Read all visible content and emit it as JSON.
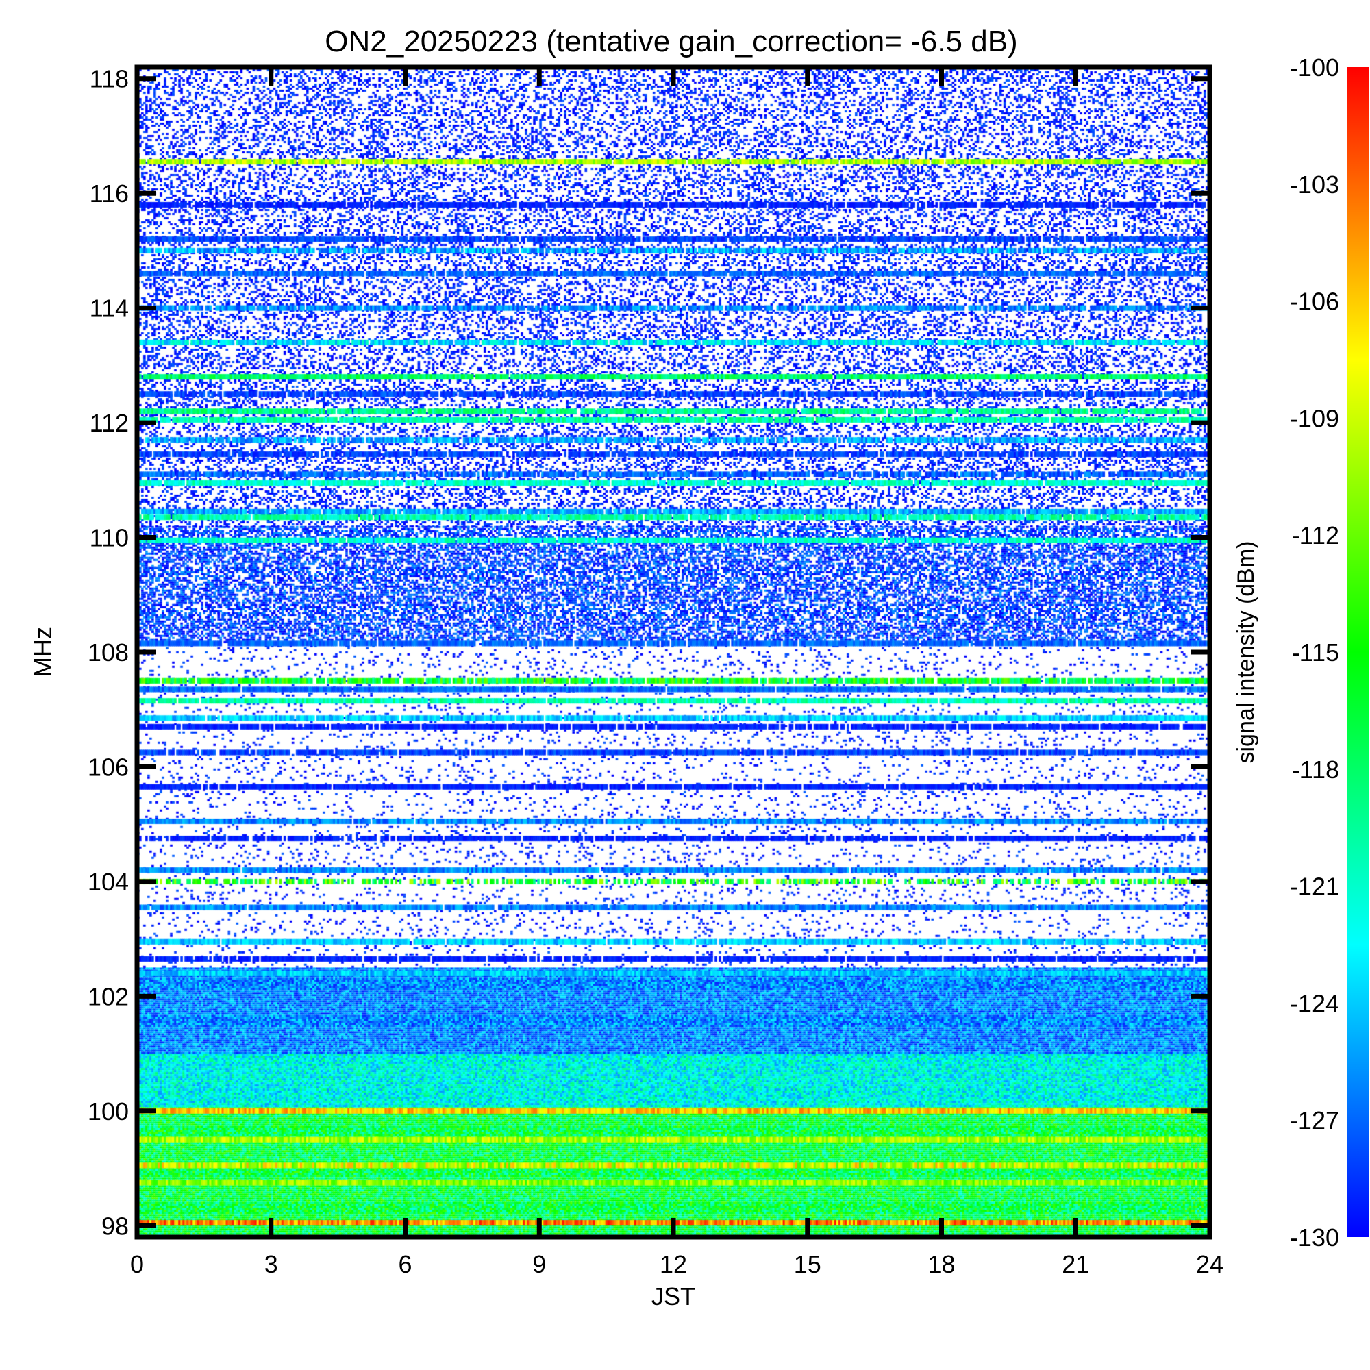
{
  "chart_data": {
    "type": "heatmap",
    "title": "ON2_20250223 (tentative gain_correction= -6.5 dB)",
    "xlabel": "JST",
    "ylabel": "MHz",
    "colorbar_label": "signal intensity (dBm)",
    "xlim": [
      0,
      24
    ],
    "ylim": [
      97.8,
      118.2
    ],
    "clim": [
      -130,
      -100
    ],
    "x_ticks": [
      0,
      3,
      6,
      9,
      12,
      15,
      18,
      21,
      24
    ],
    "y_ticks": [
      98,
      100,
      102,
      104,
      106,
      108,
      110,
      112,
      114,
      116,
      118
    ],
    "colorbar_ticks": [
      -100,
      -103,
      -106,
      -109,
      -112,
      -115,
      -118,
      -121,
      -124,
      -127,
      -130
    ],
    "colormap": [
      "#0000ff",
      "#0080ff",
      "#00ffff",
      "#00ff80",
      "#00ff00",
      "#80ff00",
      "#ffff00",
      "#ff8000",
      "#ff0000"
    ],
    "background_color": "#ffffff",
    "bands": [
      {
        "freq": 116.55,
        "level": -110,
        "noise": 0.35,
        "fill": 0.98
      },
      {
        "freq": 115.8,
        "level": -129,
        "noise": 0.1,
        "fill": 0.9
      },
      {
        "freq": 115.2,
        "level": -128,
        "noise": 0.2,
        "fill": 0.95
      },
      {
        "freq": 115.0,
        "level": -125,
        "noise": 0.4,
        "fill": 0.9
      },
      {
        "freq": 114.6,
        "level": -127,
        "noise": 0.2,
        "fill": 0.95
      },
      {
        "freq": 114.0,
        "level": -126,
        "noise": 0.3,
        "fill": 0.9
      },
      {
        "freq": 113.4,
        "level": -123,
        "noise": 0.4,
        "fill": 0.95
      },
      {
        "freq": 112.8,
        "level": -118,
        "noise": 0.3,
        "fill": 0.98
      },
      {
        "freq": 112.5,
        "level": -128,
        "noise": 0.2,
        "fill": 0.9
      },
      {
        "freq": 112.2,
        "level": -119,
        "noise": 0.3,
        "fill": 0.95
      },
      {
        "freq": 112.05,
        "level": -120,
        "noise": 0.3,
        "fill": 0.95
      },
      {
        "freq": 111.7,
        "level": -125,
        "noise": 0.3,
        "fill": 0.85
      },
      {
        "freq": 111.45,
        "level": -128,
        "noise": 0.2,
        "fill": 0.9
      },
      {
        "freq": 111.1,
        "level": -127,
        "noise": 0.3,
        "fill": 0.9
      },
      {
        "freq": 110.95,
        "level": -121,
        "noise": 0.3,
        "fill": 0.95
      },
      {
        "freq": 110.45,
        "level": -125,
        "noise": 0.3,
        "fill": 0.95
      },
      {
        "freq": 110.35,
        "level": -120,
        "noise": 0.3,
        "fill": 0.95
      },
      {
        "freq": 109.95,
        "level": -121,
        "noise": 0.3,
        "fill": 0.95
      },
      {
        "freq": 108.15,
        "level": -127,
        "noise": 0.2,
        "fill": 0.95
      },
      {
        "freq": 107.5,
        "level": -116,
        "noise": 0.6,
        "fill": 0.9
      },
      {
        "freq": 107.35,
        "level": -127,
        "noise": 0.2,
        "fill": 0.98
      },
      {
        "freq": 107.15,
        "level": -120,
        "noise": 0.3,
        "fill": 0.98
      },
      {
        "freq": 106.85,
        "level": -124,
        "noise": 0.3,
        "fill": 0.95
      },
      {
        "freq": 106.7,
        "level": -129,
        "noise": 0.1,
        "fill": 0.9
      },
      {
        "freq": 106.25,
        "level": -128,
        "noise": 0.2,
        "fill": 0.95
      },
      {
        "freq": 105.65,
        "level": -129,
        "noise": 0.1,
        "fill": 0.95
      },
      {
        "freq": 105.05,
        "level": -126,
        "noise": 0.3,
        "fill": 0.98
      },
      {
        "freq": 104.75,
        "level": -129,
        "noise": 0.1,
        "fill": 0.85
      },
      {
        "freq": 104.2,
        "level": -126,
        "noise": 0.3,
        "fill": 0.98
      },
      {
        "freq": 104.0,
        "level": -115,
        "noise": 0.8,
        "fill": 0.6
      },
      {
        "freq": 103.55,
        "level": -126,
        "noise": 0.3,
        "fill": 0.98
      },
      {
        "freq": 102.95,
        "level": -124,
        "noise": 0.3,
        "fill": 0.98
      },
      {
        "freq": 102.65,
        "level": -129,
        "noise": 0.1,
        "fill": 0.9
      },
      {
        "freq": 102.4,
        "level": -124,
        "noise": 0.3,
        "fill": 0.98
      },
      {
        "freq": 100.0,
        "level": -106,
        "noise": 0.4,
        "fill": 1.0
      },
      {
        "freq": 99.5,
        "level": -110,
        "noise": 0.4,
        "fill": 1.0
      },
      {
        "freq": 99.05,
        "level": -109,
        "noise": 0.6,
        "fill": 1.0
      },
      {
        "freq": 98.75,
        "level": -111,
        "noise": 0.4,
        "fill": 1.0
      },
      {
        "freq": 98.05,
        "level": -104,
        "noise": 0.5,
        "fill": 1.0
      }
    ],
    "regions": [
      {
        "from": 97.8,
        "to": 100.1,
        "level": -117,
        "noise": 0.5,
        "fill": 1.0
      },
      {
        "from": 100.1,
        "to": 101.0,
        "level": -122,
        "noise": 0.4,
        "fill": 1.0
      },
      {
        "from": 101.0,
        "to": 102.5,
        "level": -126,
        "noise": 0.35,
        "fill": 1.0
      },
      {
        "from": 102.5,
        "to": 110.2,
        "level": -129,
        "noise": 0.2,
        "fill": 0.08
      },
      {
        "from": 108.2,
        "to": 110.2,
        "level": -128,
        "noise": 0.3,
        "fill": 0.55
      },
      {
        "from": 110.2,
        "to": 118.2,
        "level": -129,
        "noise": 0.2,
        "fill": 0.3
      }
    ]
  }
}
